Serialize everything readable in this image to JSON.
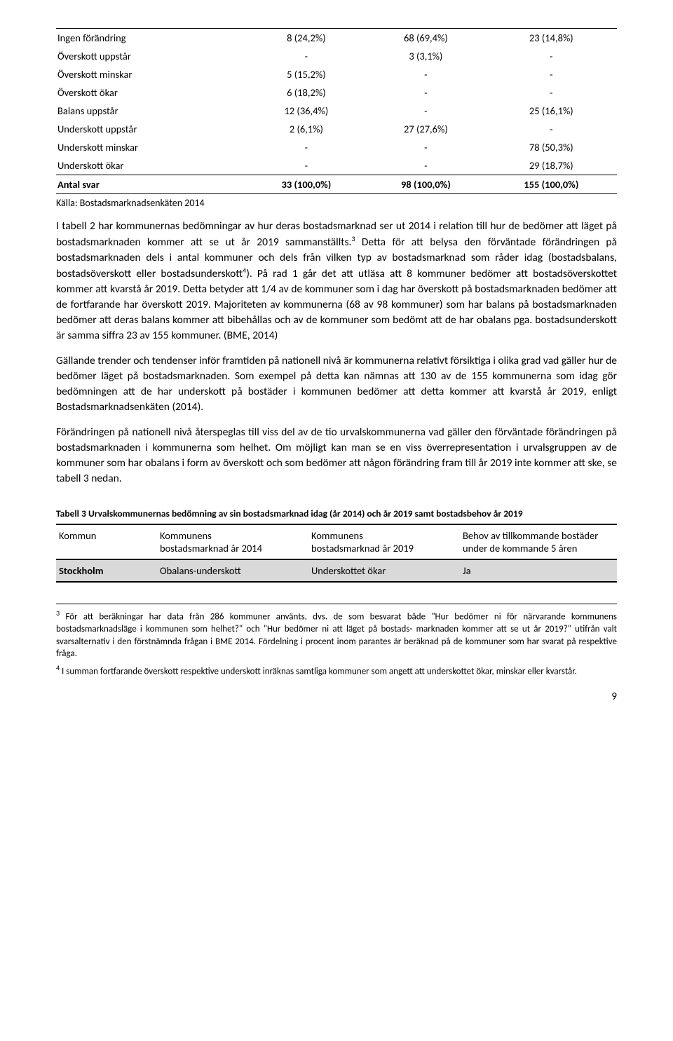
{
  "table1": {
    "rows": [
      {
        "label": "Ingen förändring",
        "c2": "8 (24,2%)",
        "c3": "68 (69,4%)",
        "c4": "23 (14,8%)"
      },
      {
        "label": "Överskott uppstår",
        "c2": "-",
        "c3": "3 (3,1%)",
        "c4": "-"
      },
      {
        "label": "Överskott minskar",
        "c2": "5 (15,2%)",
        "c3": "-",
        "c4": "-"
      },
      {
        "label": "Överskott ökar",
        "c2": "6 (18,2%)",
        "c3": "-",
        "c4": "-"
      },
      {
        "label": "Balans uppstår",
        "c2": "12 (36,4%)",
        "c3": "-",
        "c4": "25 (16,1%)"
      },
      {
        "label": "Underskott uppstår",
        "c2": "2 (6,1%)",
        "c3": "27 (27,6%)",
        "c4": "-"
      },
      {
        "label": "Underskott minskar",
        "c2": "-",
        "c3": "-",
        "c4": "78 (50,3%)"
      },
      {
        "label": "Underskott ökar",
        "c2": "-",
        "c3": "-",
        "c4": "29 (18,7%)"
      }
    ],
    "total": {
      "label": "Antal svar",
      "c2": "33 (100,0%)",
      "c3": "98 (100,0%)",
      "c4": "155 (100,0%)"
    },
    "source": "Källa: Bostadsmarknadsenkäten 2014"
  },
  "para1_a": "I tabell 2 har kommunernas bedömningar av hur deras bostadsmarknad ser ut 2014 i relation till hur de bedömer att läget på bostadsmarknaden kommer att se ut år 2019 sammanställts.",
  "para1_b": " Detta för att belysa den förväntade förändringen på bostadsmarknaden dels i antal kommuner och dels från vilken typ av bostadsmarknad som råder idag (bostadsbalans, bostadsöverskott eller bostadsunderskott",
  "para1_c": "). På rad 1 går det att utläsa att 8 kommuner bedömer att bostadsöverskottet kommer att kvarstå år 2019. Detta betyder att 1/4 av de kommuner som i dag har överskott på bostadsmarknaden bedömer att de fortfarande har överskott 2019. Majoriteten av kommunerna (68 av 98 kommuner) som har balans på bostadsmarknaden bedömer att deras balans kommer att bibehållas och av de kommuner som bedömt att de har obalans pga. bostadsunderskott är samma siffra 23 av 155 kommuner. (BME, 2014)",
  "para2": "Gällande trender och tendenser inför framtiden på nationell nivå är kommunerna relativt försiktiga i olika grad vad gäller hur de bedömer läget på bostadsmarknaden. Som exempel på detta kan nämnas att 130 av de 155 kommunerna som idag gör bedömningen att de har underskott på bostäder i kommunen bedömer att detta kommer att kvarstå år 2019, enligt Bostadsmarknadsenkäten (2014).",
  "para3": "Förändringen på nationell nivå återspeglas till viss del av de tio urvalskommunerna vad gäller den förväntade förändringen på bostadsmarknaden i kommunerna som helhet. Om möjligt kan man se en viss överrepresentation i urvalsgruppen av de kommuner som har obalans i form av överskott och som bedömer att någon förändring fram till år 2019 inte kommer att ske, se tabell 3 nedan.",
  "t3caption": "Tabell 3 Urvalskommunernas bedömning av sin bostadsmarknad idag (år 2014) och år 2019 samt bostadsbehov år 2019",
  "t3": {
    "h1": "Kommun",
    "h2a": "Kommunens",
    "h2b": "bostadsmarknad år 2014",
    "h3a": "Kommunens",
    "h3b": "bostadsmarknad år 2019",
    "h4a": "Behov av tillkommande bostäder",
    "h4b": "under de kommande 5 åren",
    "row": {
      "c1": "Stockholm",
      "c2": "Obalans-underskott",
      "c3": "Underskottet ökar",
      "c4": "Ja"
    }
  },
  "footnotes": {
    "fn3_num": "3",
    "fn3": " För att beräkningar har data från 286 kommuner använts, dvs. de som besvarat både \"Hur bedömer ni för närvarande kommunens bostadsmarknadsläge i kommunen som helhet?\" och \"Hur bedömer ni att läget på bostads- marknaden kommer att se ut år 2019?\" utifrån valt svarsalternativ i den förstnämnda frågan i BME 2014. Fördelning i procent inom parantes är beräknad på de kommuner som har svarat på respektive fråga.",
    "fn4_num": "4",
    "fn4": " I summan fortfarande överskott respektive underskott inräknas samtliga kommuner som angett att underskottet ökar, minskar eller kvarstår."
  },
  "pagenum": "9",
  "sup3": "3",
  "sup4": "4"
}
